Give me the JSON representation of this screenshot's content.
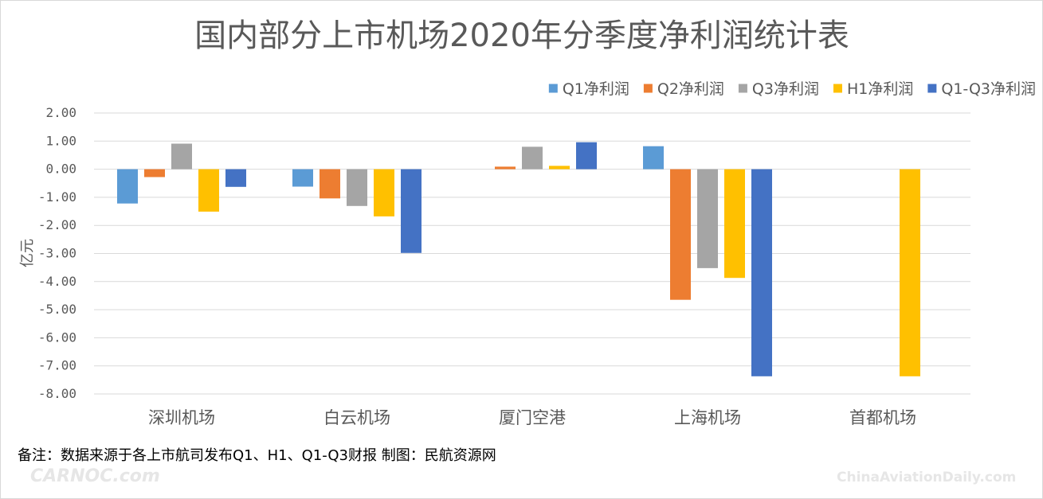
{
  "chart_data": {
    "type": "bar",
    "title": "国内部分上市机场2020年分季度净利润统计表",
    "ylabel": "亿元",
    "xlabel": "",
    "ylim": [
      -8,
      2
    ],
    "yticks": [
      2,
      1,
      0,
      -1,
      -2,
      -3,
      -4,
      -5,
      -6,
      -7,
      -8
    ],
    "ytick_labels": [
      "2.00",
      "1.00",
      "0.00",
      "-1.00",
      "-2.00",
      "-3.00",
      "-4.00",
      "-5.00",
      "-6.00",
      "-7.00",
      "-8.00"
    ],
    "grid": true,
    "legend_position": "top-right",
    "categories": [
      "深圳机场",
      "白云机场",
      "厦门空港",
      "上海机场",
      "首都机场"
    ],
    "series": [
      {
        "name": "Q1净利润",
        "color": "#5b9bd5",
        "values": [
          -1.22,
          -0.62,
          null,
          0.82,
          null
        ]
      },
      {
        "name": "Q2净利润",
        "color": "#ed7d31",
        "values": [
          -0.28,
          -1.04,
          0.09,
          -4.65,
          null
        ]
      },
      {
        "name": "Q3净利润",
        "color": "#a5a5a5",
        "values": [
          0.91,
          -1.31,
          0.8,
          -3.52,
          null
        ]
      },
      {
        "name": "H1净利润",
        "color": "#ffc000",
        "values": [
          -1.51,
          -1.68,
          0.12,
          -3.87,
          -7.37
        ]
      },
      {
        "name": "Q1-Q3净利润",
        "color": "#4472c4",
        "values": [
          -0.63,
          -2.98,
          0.96,
          -7.37,
          null
        ]
      }
    ]
  },
  "footer": {
    "note": "备注：数据来源于各上市航司发布Q1、H1、Q1-Q3财报  制图：民航资源网"
  },
  "watermarks": {
    "left": "CARNOC.com",
    "right": "ChinaAviationDaily.com"
  }
}
